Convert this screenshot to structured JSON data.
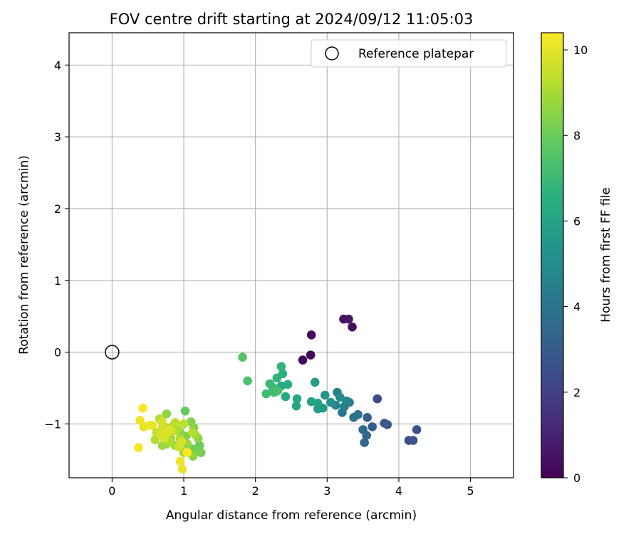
{
  "chart_data": {
    "type": "scatter",
    "title": "FOV centre drift starting at 2024/09/12 11:05:03",
    "xlabel": "Angular distance from reference (arcmin)",
    "ylabel": "Rotation from reference (arcmin)",
    "xlim": [
      -0.6,
      5.6
    ],
    "ylim": [
      -1.75,
      4.45
    ],
    "x_ticks": [
      0,
      1,
      2,
      3,
      4,
      5
    ],
    "y_ticks": [
      -1,
      0,
      1,
      2,
      3,
      4
    ],
    "y_tick_labels": [
      "−1",
      "0",
      "1",
      "2",
      "3",
      "4"
    ],
    "grid": true,
    "legend": {
      "position": "top-right",
      "entries": [
        {
          "label": "Reference platepar",
          "marker": "open-circle"
        }
      ]
    },
    "reference_point": {
      "x": 0,
      "y": 0
    },
    "colorbar": {
      "label": "Hours from first FF file",
      "min": 0,
      "max": 10.4,
      "ticks": [
        0,
        2,
        4,
        6,
        8,
        10
      ],
      "colormap": "viridis"
    },
    "points": [
      [
        2.66,
        -0.11,
        0.1
      ],
      [
        2.77,
        -0.04,
        0.2
      ],
      [
        2.78,
        0.24,
        0.3
      ],
      [
        3.35,
        0.35,
        0.4
      ],
      [
        3.23,
        0.46,
        0.5
      ],
      [
        3.3,
        0.46,
        0.6
      ],
      [
        3.7,
        -0.65,
        2.4
      ],
      [
        4.14,
        -1.23,
        2.5
      ],
      [
        4.2,
        -1.23,
        2.6
      ],
      [
        4.25,
        -1.08,
        2.7
      ],
      [
        3.84,
        -1.01,
        2.8
      ],
      [
        3.8,
        -0.99,
        2.9
      ],
      [
        3.63,
        -1.04,
        3.1
      ],
      [
        3.56,
        -0.91,
        3.2
      ],
      [
        3.55,
        -1.16,
        3.4
      ],
      [
        3.52,
        -1.26,
        3.5
      ],
      [
        3.5,
        -1.08,
        3.6
      ],
      [
        3.43,
        -0.87,
        3.8
      ],
      [
        3.37,
        -0.91,
        3.9
      ],
      [
        3.21,
        -0.84,
        4.0
      ],
      [
        3.31,
        -0.7,
        4.2
      ],
      [
        3.24,
        -0.76,
        4.4
      ],
      [
        3.14,
        -0.56,
        4.5
      ],
      [
        3.27,
        -0.68,
        4.7
      ],
      [
        3.12,
        -0.74,
        4.8
      ],
      [
        3.18,
        -0.63,
        5.0
      ],
      [
        3.05,
        -0.7,
        5.2
      ],
      [
        2.97,
        -0.6,
        5.4
      ],
      [
        2.94,
        -0.78,
        5.5
      ],
      [
        2.87,
        -0.79,
        5.7
      ],
      [
        2.83,
        -0.42,
        5.8
      ],
      [
        2.78,
        -0.69,
        5.9
      ],
      [
        2.87,
        -0.71,
        6.0
      ],
      [
        2.57,
        -0.75,
        6.1
      ],
      [
        2.58,
        -0.65,
        6.2
      ],
      [
        2.42,
        -0.62,
        6.3
      ],
      [
        2.36,
        -0.47,
        6.4
      ],
      [
        2.45,
        -0.45,
        6.5
      ],
      [
        2.38,
        -0.3,
        6.6
      ],
      [
        2.3,
        -0.36,
        6.7
      ],
      [
        2.36,
        -0.2,
        6.8
      ],
      [
        2.24,
        -0.49,
        6.9
      ],
      [
        2.2,
        -0.44,
        7.0
      ],
      [
        2.15,
        -0.58,
        7.1
      ],
      [
        2.26,
        -0.56,
        7.2
      ],
      [
        2.31,
        -0.54,
        7.3
      ],
      [
        1.89,
        -0.4,
        7.4
      ],
      [
        1.82,
        -0.07,
        7.5
      ],
      [
        1.02,
        -0.82,
        7.9
      ],
      [
        1.22,
        -1.3,
        8.0
      ],
      [
        1.12,
        -1.35,
        8.1
      ],
      [
        1.24,
        -1.4,
        8.2
      ],
      [
        1.18,
        -1.37,
        8.2
      ],
      [
        1.08,
        -1.4,
        8.3
      ],
      [
        1.03,
        -1.17,
        8.3
      ],
      [
        0.95,
        -1.12,
        8.4
      ],
      [
        1.1,
        -0.97,
        8.4
      ],
      [
        1.14,
        -1.05,
        8.5
      ],
      [
        1.2,
        -1.2,
        8.5
      ],
      [
        0.76,
        -0.86,
        8.6
      ],
      [
        1.13,
        -1.45,
        8.6
      ],
      [
        0.88,
        -1.3,
        8.7
      ],
      [
        1.05,
        -1.28,
        8.7
      ],
      [
        0.7,
        -1.3,
        8.8
      ],
      [
        0.76,
        -1.28,
        8.8
      ],
      [
        0.82,
        -1.2,
        8.9
      ],
      [
        1.16,
        -1.15,
        8.9
      ],
      [
        0.91,
        -1.08,
        9.0
      ],
      [
        0.85,
        -1.03,
        9.0
      ],
      [
        1.0,
        -1.4,
        9.0
      ],
      [
        0.95,
        -1.2,
        9.1
      ],
      [
        0.8,
        -1.25,
        9.1
      ],
      [
        0.6,
        -1.22,
        9.2
      ],
      [
        1.12,
        -1.12,
        9.2
      ],
      [
        0.66,
        -0.93,
        9.3
      ],
      [
        0.75,
        -1.05,
        9.3
      ],
      [
        0.88,
        -0.98,
        9.4
      ],
      [
        1.0,
        -1.0,
        9.4
      ],
      [
        0.62,
        -1.12,
        9.5
      ],
      [
        0.85,
        -1.1,
        9.5
      ],
      [
        0.93,
        -1.32,
        9.6
      ],
      [
        0.7,
        -1.05,
        9.6
      ],
      [
        0.7,
        -0.97,
        9.7
      ],
      [
        0.73,
        -1.2,
        9.7
      ],
      [
        0.97,
        -1.25,
        9.8
      ],
      [
        0.68,
        -1.15,
        9.8
      ],
      [
        0.77,
        -1.12,
        9.9
      ],
      [
        0.8,
        -1.08,
        9.9
      ],
      [
        0.56,
        -1.02,
        10.0
      ],
      [
        0.44,
        -1.04,
        10.0
      ],
      [
        0.52,
        -1.02,
        10.1
      ],
      [
        0.98,
        -1.63,
        10.1
      ],
      [
        0.95,
        -1.52,
        10.2
      ],
      [
        0.39,
        -0.95,
        10.2
      ],
      [
        0.43,
        -0.78,
        10.3
      ],
      [
        0.37,
        -1.33,
        10.3
      ],
      [
        1.05,
        -1.4,
        10.4
      ]
    ]
  }
}
